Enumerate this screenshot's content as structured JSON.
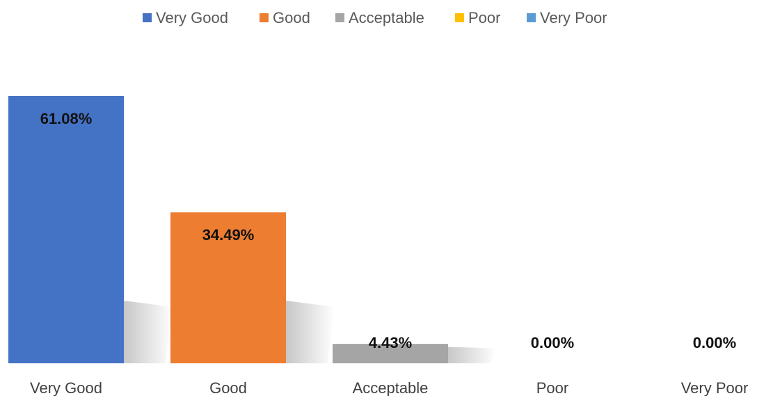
{
  "chart_data": {
    "type": "bar",
    "categories": [
      "Very Good",
      "Good",
      "Acceptable",
      "Poor",
      "Very Poor"
    ],
    "values": [
      61.08,
      34.49,
      4.43,
      0.0,
      0.0
    ],
    "value_labels": [
      "61.08%",
      "34.49%",
      "4.43%",
      "0.00%",
      "0.00%"
    ],
    "value_suffix": "%",
    "colors": [
      "#4472C4",
      "#ED7D31",
      "#A5A5A5",
      "#FFC000",
      "#5B9BD5"
    ],
    "ylim": [
      0,
      61.08
    ],
    "grid": false,
    "legend": {
      "position": "top",
      "entries": [
        "Very Good",
        "Good",
        "Acceptable",
        "Poor",
        "Very Poor"
      ]
    },
    "title": "",
    "xlabel": "",
    "ylabel": ""
  }
}
